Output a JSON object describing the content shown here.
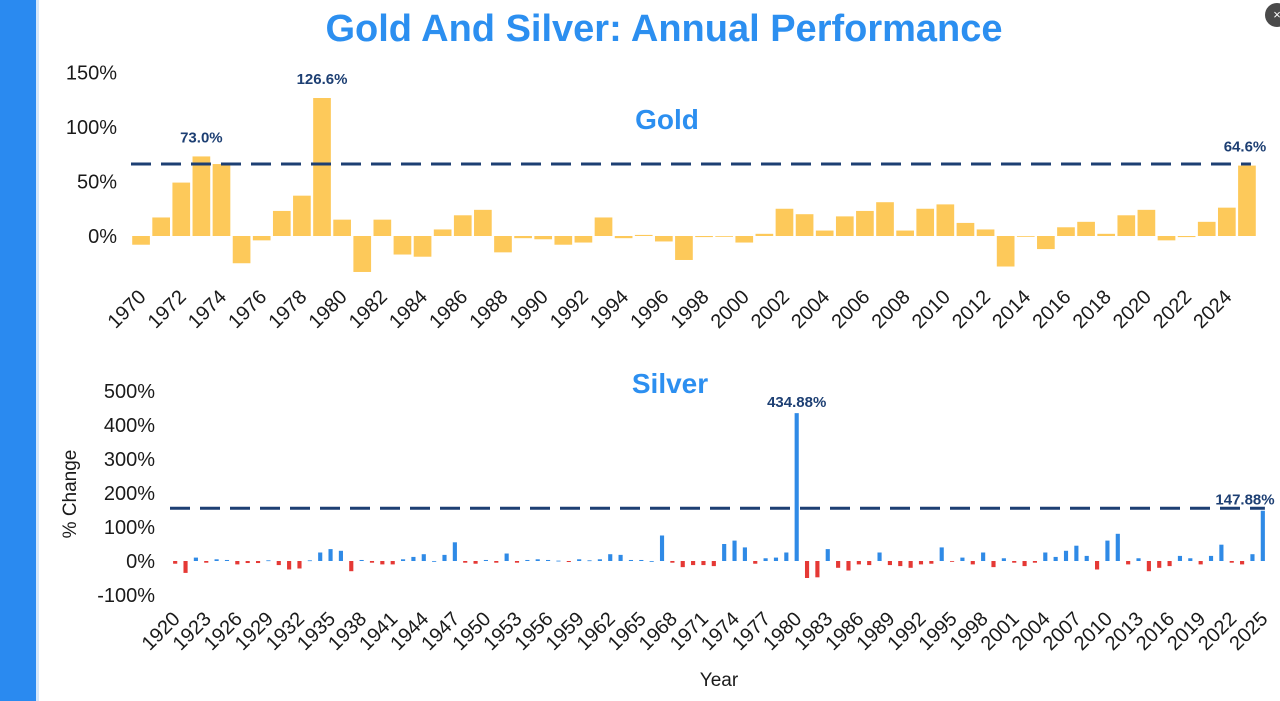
{
  "page": {
    "title": "Gold And Silver: Annual Performance",
    "close_icon": "×"
  },
  "colors": {
    "accent_bar": "#2a8af0",
    "title": "#2c8ff0",
    "gold": "#fdc95a",
    "silver_up": "#2f8ae6",
    "silver_down": "#e53935",
    "ref_line": "#1d3f73"
  },
  "chart_data": [
    {
      "type": "bar",
      "title": "Gold",
      "x_start": 1970,
      "x_end": 2025,
      "values": [
        -8,
        17,
        49,
        73,
        66,
        -25,
        -4,
        23,
        37,
        126.6,
        15,
        -33,
        15,
        -17,
        -19,
        6,
        19,
        24,
        -15,
        -2,
        -3,
        -8,
        -6,
        17,
        -2,
        1,
        -5,
        -22,
        -1,
        0,
        -6,
        2,
        25,
        20,
        5,
        18,
        23,
        31,
        5,
        25,
        29,
        12,
        6,
        -28,
        0,
        -12,
        8,
        13,
        2,
        19,
        24,
        -4,
        -1,
        13,
        26,
        64.6
      ],
      "ylim": [
        -40,
        160
      ],
      "y_ticks": [
        "150%",
        "100%",
        "50%",
        "0%"
      ],
      "y_tick_values": [
        150,
        100,
        50,
        0
      ],
      "x_ticks": [
        "1970",
        "1972",
        "1974",
        "1976",
        "1978",
        "1980",
        "1982",
        "1984",
        "1986",
        "1988",
        "1990",
        "1992",
        "1994",
        "1996",
        "1998",
        "2000",
        "2002",
        "2004",
        "2006",
        "2008",
        "2010",
        "2012",
        "2014",
        "2016",
        "2018",
        "2020",
        "2022",
        "2024"
      ],
      "reference_line": 66,
      "annotations": [
        {
          "year": 1973,
          "value": 73.0,
          "text": "73.0%"
        },
        {
          "year": 1979,
          "value": 126.6,
          "text": "126.6%"
        },
        {
          "year": 2025,
          "value": 64.6,
          "text": "64.6%"
        }
      ],
      "grid": false
    },
    {
      "type": "bar",
      "title": "Silver",
      "ylabel": "% Change",
      "xlabel": "Year",
      "x_start": 1920,
      "x_end": 2025,
      "values": [
        -8,
        -35,
        10,
        -5,
        5,
        3,
        -10,
        -6,
        -6,
        2,
        -12,
        -25,
        -22,
        2,
        25,
        35,
        30,
        -30,
        3,
        -5,
        -10,
        -10,
        5,
        12,
        20,
        0,
        18,
        55,
        -5,
        -8,
        3,
        -5,
        22,
        -5,
        3,
        5,
        3,
        1,
        -3,
        5,
        2,
        5,
        20,
        18,
        3,
        3,
        0,
        75,
        -5,
        -18,
        -12,
        -12,
        -15,
        50,
        60,
        40,
        -8,
        8,
        10,
        25,
        434.88,
        -50,
        -48,
        35,
        -20,
        -28,
        -10,
        -12,
        25,
        -12,
        -15,
        -20,
        -10,
        -8,
        40,
        -2,
        10,
        -10,
        25,
        -18,
        8,
        -5,
        -15,
        -5,
        25,
        12,
        30,
        45,
        15,
        -25,
        60,
        80,
        -10,
        8,
        -30,
        -20,
        -15,
        15,
        8,
        -10,
        15,
        48,
        -5,
        -10,
        20,
        147.88
      ],
      "ylim": [
        -100,
        500
      ],
      "y_ticks": [
        "500%",
        "400%",
        "300%",
        "200%",
        "100%",
        "0%",
        "-100%"
      ],
      "y_tick_values": [
        500,
        400,
        300,
        200,
        100,
        0,
        -100
      ],
      "x_ticks": [
        "1920",
        "1923",
        "1926",
        "1929",
        "1932",
        "1935",
        "1938",
        "1941",
        "1944",
        "1947",
        "1950",
        "1953",
        "1956",
        "1959",
        "1962",
        "1965",
        "1968",
        "1971",
        "1974",
        "1977",
        "1980",
        "1983",
        "1986",
        "1989",
        "1992",
        "1995",
        "1998",
        "2001",
        "2004",
        "2007",
        "2010",
        "2013",
        "2016",
        "2019",
        "2022",
        "2025"
      ],
      "reference_line": 155,
      "annotations": [
        {
          "year": 1980,
          "value": 434.88,
          "text": "434.88%"
        },
        {
          "year": 2025,
          "value": 147.88,
          "text": "147.88%"
        }
      ],
      "grid": false
    }
  ]
}
